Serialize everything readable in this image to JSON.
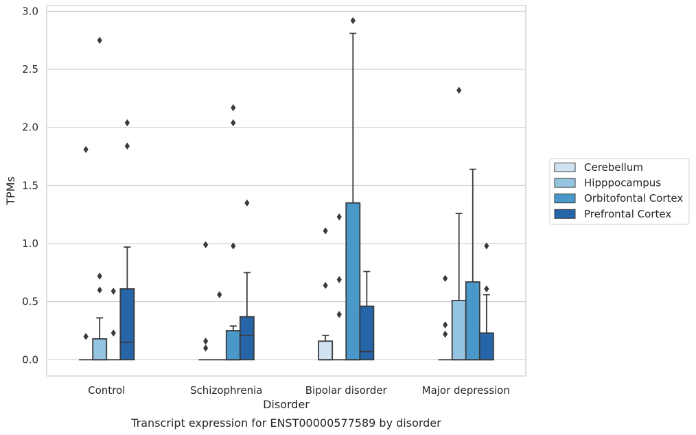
{
  "chart_data": {
    "type": "box",
    "caption": "Transcript expression for ENST00000577589 by disorder",
    "xlabel": "Disorder",
    "ylabel": "TPMs",
    "ylim": [
      -0.14,
      3.05
    ],
    "yticks": [
      0.0,
      0.5,
      1.0,
      1.5,
      2.0,
      2.5,
      3.0
    ],
    "ytick_labels": [
      "0.0",
      "0.5",
      "1.0",
      "1.5",
      "2.0",
      "2.5",
      "3.0"
    ],
    "grid": "horizontal",
    "legend_position": "right",
    "categories": [
      "Control",
      "Schizophrenia",
      "Bipolar disorder",
      "Major depression"
    ],
    "series": [
      {
        "name": "Cerebellum",
        "color": "#d0e1f2",
        "boxes": [
          {
            "q1": 0,
            "median": 0,
            "q3": 0,
            "whisker_low": 0,
            "whisker_high": 0,
            "outliers": [
              0.2,
              1.81
            ]
          },
          {
            "q1": 0,
            "median": 0,
            "q3": 0,
            "whisker_low": 0,
            "whisker_high": 0,
            "outliers": [
              0.1,
              0.16,
              0.99
            ]
          },
          {
            "q1": 0,
            "median": 0,
            "q3": 0.16,
            "whisker_low": 0,
            "whisker_high": 0.21,
            "outliers": [
              0.64,
              1.11
            ]
          },
          {
            "q1": 0,
            "median": 0,
            "q3": 0,
            "whisker_low": 0,
            "whisker_high": 0,
            "outliers": [
              0.22,
              0.3,
              0.7
            ]
          }
        ]
      },
      {
        "name": "Hipppocampus",
        "color": "#94c4df",
        "boxes": [
          {
            "q1": 0,
            "median": 0,
            "q3": 0.18,
            "whisker_low": 0,
            "whisker_high": 0.36,
            "outliers": [
              0.6,
              0.72,
              2.75
            ]
          },
          {
            "q1": 0,
            "median": 0,
            "q3": 0,
            "whisker_low": 0,
            "whisker_high": 0,
            "outliers": [
              0.56
            ]
          },
          {
            "q1": 0,
            "median": 0,
            "q3": 0,
            "whisker_low": 0,
            "whisker_high": 0,
            "outliers": [
              0.39,
              0.69,
              1.23
            ]
          },
          {
            "q1": 0,
            "median": 0,
            "q3": 0.51,
            "whisker_low": 0,
            "whisker_high": 1.26,
            "outliers": [
              2.32
            ]
          }
        ]
      },
      {
        "name": "Orbitofontal Cortex",
        "color": "#4a98c9",
        "boxes": [
          {
            "q1": 0,
            "median": 0,
            "q3": 0,
            "whisker_low": 0,
            "whisker_high": 0,
            "outliers": [
              0.23,
              0.59
            ]
          },
          {
            "q1": 0,
            "median": 0,
            "q3": 0.25,
            "whisker_low": 0,
            "whisker_high": 0.29,
            "outliers": [
              0.98,
              2.04,
              2.17
            ]
          },
          {
            "q1": 0,
            "median": 0,
            "q3": 1.35,
            "whisker_low": 0,
            "whisker_high": 2.81,
            "outliers": [
              2.92
            ]
          },
          {
            "q1": 0,
            "median": 0,
            "q3": 0.67,
            "whisker_low": 0,
            "whisker_high": 1.64,
            "outliers": []
          }
        ]
      },
      {
        "name": "Prefrontal Cortex",
        "color": "#2565a8",
        "boxes": [
          {
            "q1": 0,
            "median": 0.15,
            "q3": 0.61,
            "whisker_low": 0,
            "whisker_high": 0.97,
            "outliers": [
              1.84,
              2.04
            ]
          },
          {
            "q1": 0,
            "median": 0.21,
            "q3": 0.37,
            "whisker_low": 0,
            "whisker_high": 0.75,
            "outliers": [
              1.35
            ]
          },
          {
            "q1": 0,
            "median": 0.07,
            "q3": 0.46,
            "whisker_low": 0,
            "whisker_high": 0.76,
            "outliers": []
          },
          {
            "q1": 0,
            "median": 0,
            "q3": 0.23,
            "whisker_low": 0,
            "whisker_high": 0.56,
            "outliers": [
              0.61,
              0.98
            ]
          }
        ]
      }
    ]
  }
}
